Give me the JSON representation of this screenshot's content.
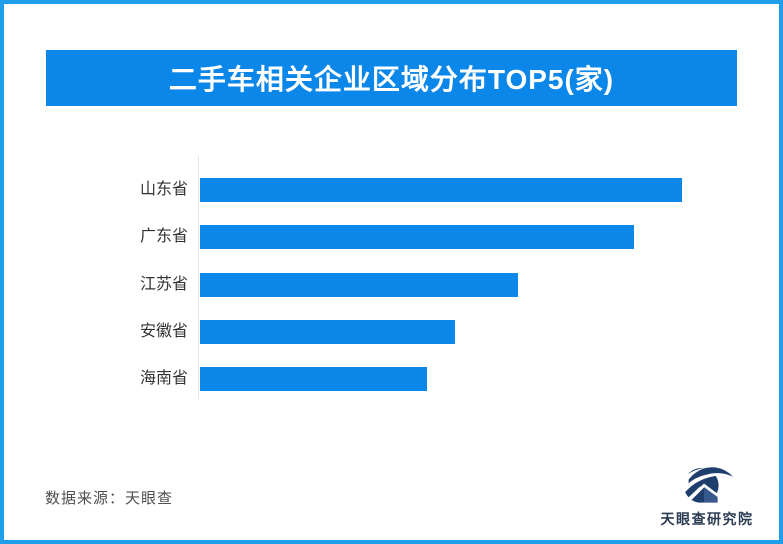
{
  "banner": {
    "bg_color": "#0b86e9"
  },
  "chart_data": {
    "type": "bar",
    "orientation": "horizontal",
    "title": "二手车相关企业区域分布TOP5(家)",
    "categories": [
      "山东省",
      "广东省",
      "江苏省",
      "安徽省",
      "海南省"
    ],
    "values_relative_pct_of_max": [
      100,
      90,
      66,
      53,
      47
    ],
    "value_labels_shown": false,
    "axis_tick_labels_shown": false,
    "gridlines": false,
    "legend_position": "none",
    "bar_color": "#0b86e9",
    "unit_hint": "家"
  },
  "footer": {
    "source_note": "数据来源：天眼查",
    "logo_text": "天眼查研究院"
  },
  "colors": {
    "accent_blue": "#0b86e9",
    "frame_border_blue": "#1f9fe9",
    "logo_navy": "#1e3e6d",
    "logo_mid_blue": "#37598c",
    "label_text": "#333333",
    "source_text": "#4f4f4f",
    "logo_text_color": "#2b3c52"
  }
}
